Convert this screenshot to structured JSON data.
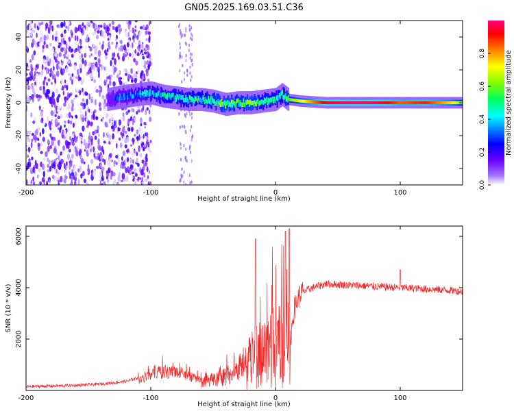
{
  "title": "GN05.2025.169.03.51.C36",
  "chart_data": [
    {
      "type": "heatmap",
      "xlabel": "Height of straight line (km)",
      "ylabel": "Frequency (Hz)",
      "xlim": [
        -200,
        150
      ],
      "ylim": [
        -50,
        50
      ],
      "xticks": [
        -200,
        -100,
        0,
        100
      ],
      "yticks": [
        -40,
        -20,
        0,
        20,
        40
      ],
      "colorbar": {
        "label": "Normalized spectral amplitude",
        "range": [
          0,
          1
        ],
        "ticks": [
          "0.0",
          "0.2",
          "0.4",
          "0.6",
          "0.8"
        ],
        "colors": [
          "#ffffff",
          "#6a00ff",
          "#0000ff",
          "#00c8ff",
          "#00ff80",
          "#80ff00",
          "#ffff00",
          "#ff8000",
          "#ff0000",
          "#ff0080"
        ]
      },
      "ridge": {
        "x": [
          -135,
          -120,
          -110,
          -100,
          -90,
          -80,
          -70,
          -60,
          -50,
          -40,
          -30,
          -20,
          -10,
          0,
          5,
          10,
          20,
          40,
          60,
          80,
          100,
          120,
          140,
          150
        ],
        "frequency": [
          2,
          4,
          5,
          6,
          4,
          3,
          2,
          2,
          1,
          -1,
          0,
          0,
          1,
          2,
          5,
          2,
          1,
          0,
          0,
          0,
          0,
          0,
          0,
          0
        ],
        "amplitude": [
          0.3,
          0.35,
          0.4,
          0.45,
          0.5,
          0.5,
          0.55,
          0.55,
          0.6,
          0.65,
          0.6,
          0.65,
          0.55,
          0.5,
          0.55,
          0.6,
          0.7,
          0.95,
          1.0,
          0.98,
          0.85,
          0.9,
          0.75,
          0.6
        ]
      },
      "noise_region_x": [
        -200,
        -100
      ]
    },
    {
      "type": "line",
      "xlabel": "Height of straight line (km)",
      "ylabel": "SNR (10 * v/v)",
      "xlim": [
        -200,
        150
      ],
      "ylim": [
        0,
        6400
      ],
      "xticks": [
        -200,
        -100,
        0,
        100
      ],
      "yticks": [
        2000,
        4000,
        6000
      ],
      "color": "#ee2c2c",
      "series": [
        {
          "x": [
            -200,
            -180,
            -160,
            -140,
            -120,
            -110,
            -100,
            -90,
            -80,
            -70,
            -60,
            -50,
            -40,
            -30,
            -20,
            -15,
            -10,
            -5,
            0,
            5,
            10,
            12,
            15,
            20,
            30,
            40,
            60,
            80,
            100,
            120,
            140,
            150
          ],
          "values": [
            150,
            170,
            200,
            250,
            350,
            500,
            800,
            1000,
            1000,
            750,
            600,
            700,
            900,
            1300,
            2200,
            2600,
            3000,
            3300,
            3500,
            3600,
            3200,
            2000,
            3200,
            3800,
            4000,
            4150,
            4100,
            4050,
            4000,
            3950,
            3900,
            3850
          ]
        }
      ],
      "peaks": [
        {
          "x": -16,
          "y": 5900
        },
        {
          "x": 11,
          "y": 6300
        },
        {
          "x": 8,
          "y": 6200
        },
        {
          "x": 100,
          "y": 4700
        }
      ]
    }
  ]
}
